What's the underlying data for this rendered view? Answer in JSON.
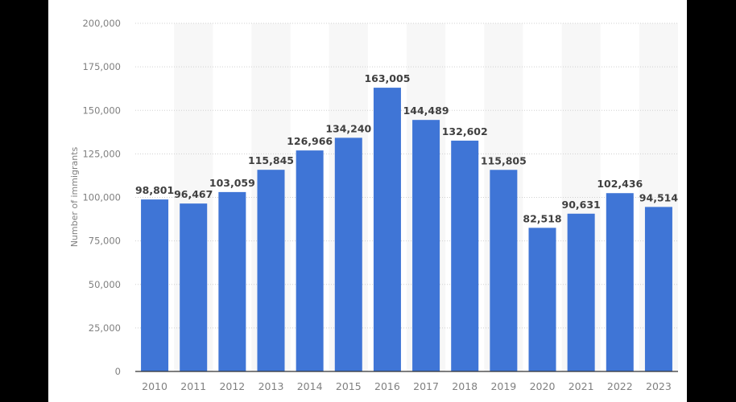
{
  "chart_data": {
    "type": "bar",
    "title": "",
    "xlabel": "",
    "ylabel": "Number of immigrants",
    "ylim": [
      0,
      200000
    ],
    "yticks": [
      0,
      25000,
      50000,
      75000,
      100000,
      125000,
      150000,
      175000,
      200000
    ],
    "ytick_labels": [
      "0",
      "25,000",
      "50,000",
      "75,000",
      "100,000",
      "125,000",
      "150,000",
      "175,000",
      "200,000"
    ],
    "categories": [
      "2010",
      "2011",
      "2012",
      "2013",
      "2014",
      "2015",
      "2016",
      "2017",
      "2018",
      "2019",
      "2020",
      "2021",
      "2022",
      "2023"
    ],
    "values": [
      98801,
      96467,
      103059,
      115845,
      126966,
      134240,
      163005,
      144489,
      132602,
      115805,
      82518,
      90631,
      102436,
      94514
    ],
    "value_labels": [
      "98,801",
      "96,467",
      "103,059",
      "115,845",
      "126,966",
      "134,240",
      "163,005",
      "144,489",
      "132,602",
      "115,805",
      "82,518",
      "90,631",
      "102,436",
      "94,514"
    ],
    "grid": true,
    "legend": "none",
    "colors": {
      "bar": "#3f75d6",
      "stripe": "#f7f7f7",
      "grid": "#d0d0d0",
      "axis_text": "#808080",
      "label_text": "#404040"
    }
  }
}
